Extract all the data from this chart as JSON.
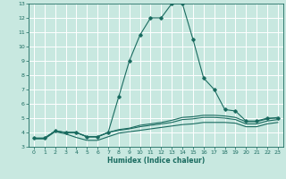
{
  "title": "",
  "xlabel": "Humidex (Indice chaleur)",
  "ylabel": "",
  "xlim": [
    -0.5,
    23.5
  ],
  "ylim": [
    3,
    13
  ],
  "yticks": [
    3,
    4,
    5,
    6,
    7,
    8,
    9,
    10,
    11,
    12,
    13
  ],
  "xticks": [
    0,
    1,
    2,
    3,
    4,
    5,
    6,
    7,
    8,
    9,
    10,
    11,
    12,
    13,
    14,
    15,
    16,
    17,
    18,
    19,
    20,
    21,
    22,
    23
  ],
  "bg_color": "#c8e8e0",
  "line_color": "#1a6b60",
  "grid_color": "#ffffff",
  "lines": [
    {
      "x": [
        0,
        1,
        2,
        3,
        4,
        5,
        6,
        7,
        8,
        9,
        10,
        11,
        12,
        13,
        14,
        15,
        16,
        17,
        18,
        19,
        20,
        21,
        22,
        23
      ],
      "y": [
        3.6,
        3.6,
        4.1,
        4.0,
        4.0,
        3.7,
        3.7,
        4.0,
        6.5,
        9.0,
        10.8,
        12.0,
        12.0,
        13.0,
        13.0,
        10.5,
        7.8,
        7.0,
        5.6,
        5.5,
        4.8,
        4.8,
        5.0,
        5.0
      ],
      "marker": true
    },
    {
      "x": [
        0,
        1,
        2,
        3,
        4,
        5,
        6,
        7,
        8,
        9,
        10,
        11,
        12,
        13,
        14,
        15,
        16,
        17,
        18,
        19,
        20,
        21,
        22,
        23
      ],
      "y": [
        3.6,
        3.6,
        4.1,
        4.0,
        4.0,
        3.7,
        3.7,
        4.0,
        4.2,
        4.3,
        4.5,
        4.6,
        4.7,
        4.85,
        5.05,
        5.1,
        5.2,
        5.2,
        5.15,
        5.05,
        4.75,
        4.75,
        4.95,
        5.05
      ],
      "marker": false
    },
    {
      "x": [
        0,
        1,
        2,
        3,
        4,
        5,
        6,
        7,
        8,
        9,
        10,
        11,
        12,
        13,
        14,
        15,
        16,
        17,
        18,
        19,
        20,
        21,
        22,
        23
      ],
      "y": [
        3.6,
        3.6,
        4.1,
        4.0,
        4.0,
        3.7,
        3.7,
        4.0,
        4.15,
        4.25,
        4.4,
        4.5,
        4.6,
        4.7,
        4.9,
        4.95,
        5.05,
        5.05,
        5.0,
        4.9,
        4.6,
        4.6,
        4.8,
        4.9
      ],
      "marker": false
    },
    {
      "x": [
        0,
        1,
        2,
        3,
        4,
        5,
        6,
        7,
        8,
        9,
        10,
        11,
        12,
        13,
        14,
        15,
        16,
        17,
        18,
        19,
        20,
        21,
        22,
        23
      ],
      "y": [
        3.55,
        3.55,
        4.05,
        3.9,
        3.65,
        3.45,
        3.45,
        3.7,
        3.95,
        4.05,
        4.15,
        4.25,
        4.35,
        4.45,
        4.55,
        4.6,
        4.7,
        4.7,
        4.7,
        4.65,
        4.4,
        4.4,
        4.6,
        4.7
      ],
      "marker": false
    }
  ]
}
